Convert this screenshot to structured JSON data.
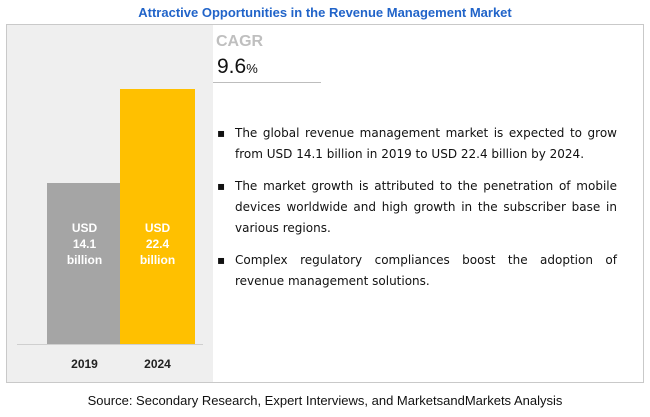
{
  "title": "Attractive Opportunities in the Revenue Management Market",
  "cagr": {
    "label": "CAGR",
    "value": "9.6",
    "unit": "%"
  },
  "bullets": [
    "The global revenue management market is expected to grow from USD 14.1 billion in 2019 to USD 22.4 billion by 2024.",
    "The market growth is attributed to the penetration of mobile devices worldwide and high growth in the subscriber base in various regions.",
    "Complex regulatory compliances boost the adoption of revenue management solutions."
  ],
  "source": "Source: Secondary Research, Expert Interviews, and MarketsandMarkets Analysis",
  "colors": {
    "bar_2019": "#a5a5a5",
    "bar_2024": "#ffc000",
    "title": "#2164c9"
  },
  "chart_data": {
    "type": "bar",
    "categories": [
      "2019",
      "2024"
    ],
    "values": [
      14.1,
      22.4
    ],
    "bar_labels": [
      [
        "USD",
        "14.1",
        "billion"
      ],
      [
        "USD",
        "22.4",
        "billion"
      ]
    ],
    "title": "",
    "xlabel": "",
    "ylabel": ""
  }
}
